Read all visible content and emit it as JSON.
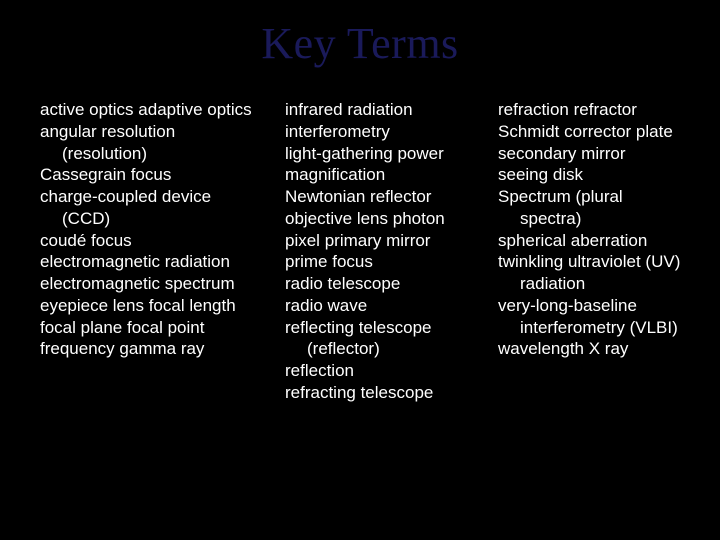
{
  "background_color": "#000000",
  "title": {
    "text": "Key Terms",
    "color": "#1a1a5a",
    "font_family": "Times New Roman",
    "font_size_pt": 33
  },
  "body": {
    "text_color": "#ffffff",
    "font_family": "Arial",
    "font_size_pt": 13,
    "line_height": 1.28
  },
  "columns": [
    {
      "items": [
        {
          "text": "active optics"
        },
        {
          "text": "adaptive optics"
        },
        {
          "text": "angular resolution"
        },
        {
          "text": "(resolution)",
          "indent": true
        },
        {
          "text": "Cassegrain focus"
        },
        {
          "text": "charge-coupled device"
        },
        {
          "text": "(CCD)",
          "indent": true
        },
        {
          "text": "coudé focus"
        },
        {
          "text": "electromagnetic radiation"
        },
        {
          "text": "electromagnetic spectrum"
        },
        {
          "text": "eyepiece lens"
        },
        {
          "text": "focal length"
        },
        {
          "text": "focal plane"
        },
        {
          "text": "focal point"
        },
        {
          "text": "frequency"
        },
        {
          "text": "gamma ray"
        }
      ]
    },
    {
      "items": [
        {
          "text": "infrared radiation"
        },
        {
          "text": "interferometry"
        },
        {
          "text": "light-gathering power"
        },
        {
          "text": "magnification"
        },
        {
          "text": "Newtonian reflector"
        },
        {
          "text": "objective lens"
        },
        {
          "text": "photon"
        },
        {
          "text": "pixel"
        },
        {
          "text": "primary mirror"
        },
        {
          "text": "prime focus"
        },
        {
          "text": "radio telescope"
        },
        {
          "text": "radio wave"
        },
        {
          "text": "reflecting telescope"
        },
        {
          "text": "(reflector)",
          "indent": true
        },
        {
          "text": "reflection"
        },
        {
          "text": "refracting telescope"
        }
      ]
    },
    {
      "items": [
        {
          "text": "refraction"
        },
        {
          "text": "refractor"
        },
        {
          "text": "Schmidt corrector plate"
        },
        {
          "text": "secondary mirror"
        },
        {
          "text": "seeing disk"
        },
        {
          "text": "Spectrum (plural"
        },
        {
          "text": "spectra)",
          "indent": true
        },
        {
          "text": "spherical aberration"
        },
        {
          "text": "twinkling"
        },
        {
          "text": "ultraviolet (UV)"
        },
        {
          "text": "radiation",
          "indent": true
        },
        {
          "text": "very-long-baseline"
        },
        {
          "text": "interferometry (VLBI)",
          "indent": true
        },
        {
          "text": "wavelength"
        },
        {
          "text": "X ray"
        }
      ]
    }
  ]
}
